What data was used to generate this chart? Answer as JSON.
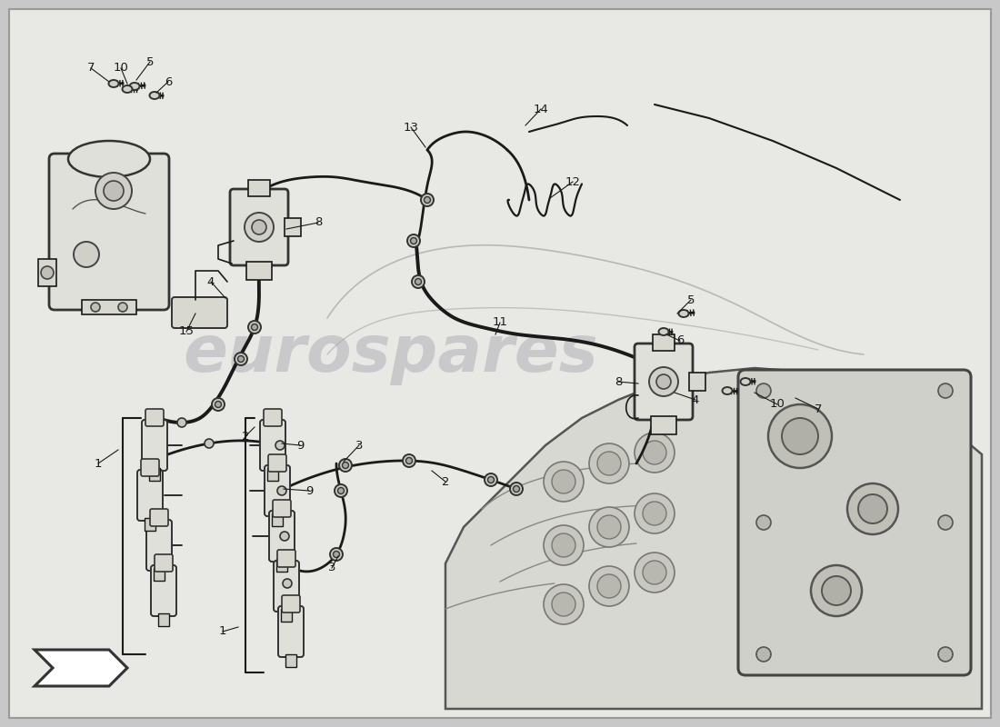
{
  "bg_color": "#c8c8c8",
  "paper_color": "#e8e8e4",
  "line_color": "#1a1a1a",
  "watermark_text": "eurospares",
  "watermark_color": "#b0b0b8",
  "watermark_alpha": 0.55,
  "label_fontsize": 9.5,
  "figsize": [
    11.0,
    8.0
  ],
  "dpi": 100
}
